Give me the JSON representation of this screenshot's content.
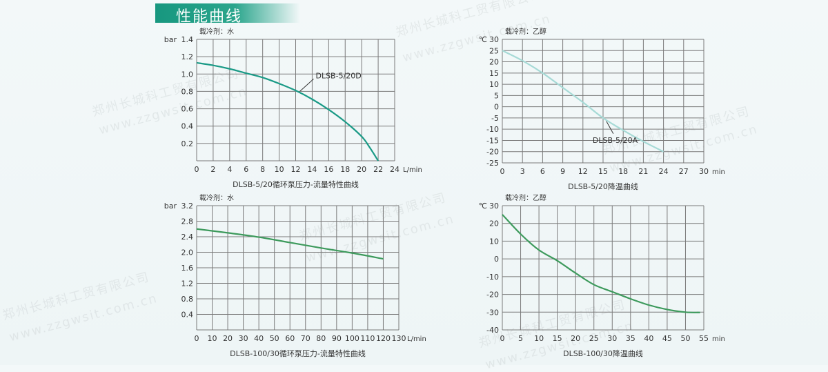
{
  "section_title": "性能曲线",
  "watermark": {
    "company": "郑州长城科工贸有限公司",
    "url": "www.zzgwsit.com.cn"
  },
  "chart_data": [
    {
      "type": "line",
      "coolant_label": "载冷剂：水",
      "title": "DLSB-5/20循环泵压力-流量特性曲线",
      "ylabel": "bar",
      "xlabel": "L/min",
      "xlim": [
        0,
        24
      ],
      "ylim": [
        0,
        1.4
      ],
      "x_ticks": [
        "0",
        "2",
        "4",
        "6",
        "8",
        "10",
        "12",
        "14",
        "16",
        "18",
        "20",
        "22",
        "24"
      ],
      "y_ticks": [
        "0.2",
        "0.4",
        "0.6",
        "0.8",
        "1.0",
        "1.2",
        "1.4"
      ],
      "grid": true,
      "color": "#1a9a86",
      "series": [
        {
          "name": "DLSB-5/20D",
          "x": [
            0,
            2,
            4,
            6,
            8,
            10,
            12,
            14,
            16,
            18,
            20,
            21,
            22
          ],
          "y": [
            1.13,
            1.1,
            1.06,
            1.01,
            0.96,
            0.89,
            0.81,
            0.71,
            0.59,
            0.45,
            0.28,
            0.15,
            0.0
          ]
        }
      ],
      "annotation": {
        "text": "DLSB-5/20D",
        "x": 12.5,
        "y": 0.8
      }
    },
    {
      "type": "line",
      "coolant_label": "载冷剂：乙醇",
      "title": "DLSB-5/20降温曲线",
      "ylabel": "℃",
      "xlabel": "min",
      "xlim": [
        0,
        30
      ],
      "ylim": [
        -25,
        30
      ],
      "x_ticks": [
        "0",
        "3",
        "6",
        "9",
        "12",
        "15",
        "18",
        "21",
        "24",
        "27",
        "30"
      ],
      "y_ticks": [
        "-25",
        "-20",
        "-15",
        "-10",
        "-5",
        "0",
        "5",
        "10",
        "15",
        "20",
        "25",
        "30"
      ],
      "grid": true,
      "color": "#a6dad6",
      "series": [
        {
          "name": "DLSB-5/20A",
          "x": [
            0,
            3,
            6,
            9,
            12,
            15,
            18,
            21,
            24
          ],
          "y": [
            25,
            20.5,
            15,
            8.5,
            2,
            -5,
            -10.5,
            -15.5,
            -20
          ]
        }
      ],
      "annotation": {
        "text": "DLSB-5/20A",
        "x": 15.5,
        "y": -6.5
      }
    },
    {
      "type": "line",
      "coolant_label": "载冷剂：水",
      "title": "DLSB-100/30循环泵压力-流量特性曲线",
      "ylabel": "bar",
      "xlabel": "L/min",
      "xlim": [
        0,
        130
      ],
      "ylim": [
        0,
        3.2
      ],
      "x_ticks": [
        "0",
        "10",
        "20",
        "30",
        "40",
        "50",
        "60",
        "70",
        "80",
        "90",
        "100",
        "110",
        "120",
        "130"
      ],
      "y_ticks": [
        "0.4",
        "0.8",
        "1.2",
        "1.6",
        "2.0",
        "2.4",
        "2.8",
        "3.2"
      ],
      "grid": true,
      "color": "#3d9a5c",
      "series": [
        {
          "x": [
            0,
            20,
            40,
            60,
            80,
            100,
            120
          ],
          "y": [
            2.6,
            2.5,
            2.39,
            2.25,
            2.11,
            1.98,
            1.83
          ]
        }
      ]
    },
    {
      "type": "line",
      "coolant_label": "载冷剂：乙醇",
      "title": "DLSB-100/30降温曲线",
      "ylabel": "℃",
      "xlabel": "min",
      "xlim": [
        0,
        55
      ],
      "ylim": [
        -40,
        30
      ],
      "x_ticks": [
        "0",
        "5",
        "10",
        "15",
        "20",
        "25",
        "30",
        "35",
        "40",
        "45",
        "50",
        "55"
      ],
      "y_ticks": [
        "-40",
        "-30",
        "-20",
        "-10",
        "0",
        "10",
        "20",
        "30"
      ],
      "grid": true,
      "color": "#3d9a5c",
      "series": [
        {
          "x": [
            0,
            5,
            10,
            15,
            20,
            25,
            30,
            35,
            40,
            45,
            50,
            54
          ],
          "y": [
            25,
            14,
            5,
            -1,
            -8,
            -14.5,
            -18.5,
            -22.5,
            -26,
            -28.5,
            -30,
            -30.2
          ]
        }
      ]
    }
  ]
}
